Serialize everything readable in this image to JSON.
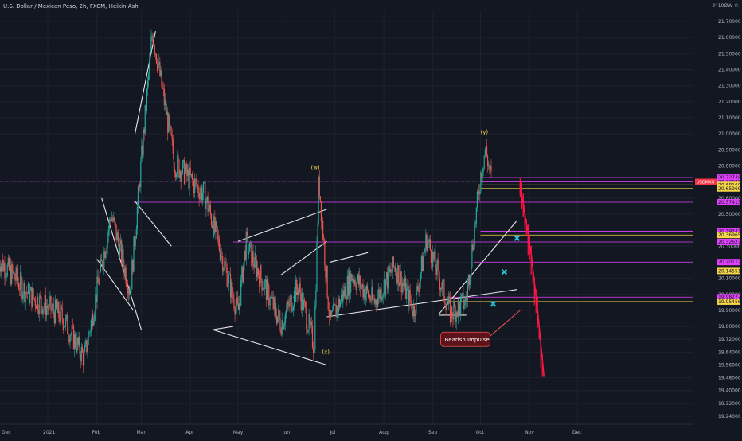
{
  "header": {
    "title": "U.S. Dollar / Mexican Peso, 2h, FXCM, Heikin Ashi",
    "corner": "2' 10ØW ©"
  },
  "chart_data": {
    "type": "candlestick",
    "symbol": "USDMXN",
    "timeframe": "2h",
    "source": "FXCM",
    "style": "Heikin Ashi",
    "x_ticks": [
      "Dec",
      "2021",
      "Feb",
      "Mar",
      "Apr",
      "May",
      "Jun",
      "Jul",
      "Aug",
      "Sep",
      "Oct",
      "Nov",
      "Dec"
    ],
    "y_ticks": [
      21.7,
      21.6,
      21.5,
      21.4,
      21.3,
      21.2,
      21.1,
      21.0,
      20.9,
      20.8,
      20.7,
      20.6,
      20.5,
      20.4,
      20.3,
      20.2,
      20.1,
      20.0,
      19.9,
      19.8,
      19.72,
      19.64,
      19.56,
      19.48,
      19.4,
      19.32,
      19.24
    ],
    "y_tick_labels": [
      "21.70000",
      "21.60000",
      "21.50000",
      "21.40000",
      "21.30000",
      "21.20000",
      "21.10000",
      "21.00000",
      "20.90000",
      "20.80000",
      "20.70000",
      "20.60000",
      "20.50000",
      "20.40000",
      "20.30000",
      "20.20000",
      "20.10000",
      "20.00000",
      "19.90000",
      "19.80000",
      "19.72000",
      "19.64000",
      "19.56000",
      "19.48000",
      "19.40000",
      "19.32000",
      "19.24000"
    ],
    "ylim": [
      19.2,
      21.82
    ],
    "price_path": [
      {
        "x": "2020-12-01",
        "y": 20.22
      },
      {
        "x": "2020-12-20",
        "y": 20.0
      },
      {
        "x": "2021-01-10",
        "y": 19.86
      },
      {
        "x": "2021-01-24",
        "y": 19.6
      },
      {
        "x": "2021-02-10",
        "y": 20.5
      },
      {
        "x": "2021-02-22",
        "y": 20.02
      },
      {
        "x": "2021-03-08",
        "y": 21.64
      },
      {
        "x": "2021-03-22",
        "y": 20.82
      },
      {
        "x": "2021-04-10",
        "y": 20.62
      },
      {
        "x": "2021-05-01",
        "y": 19.88
      },
      {
        "x": "2021-05-06",
        "y": 20.32
      },
      {
        "x": "2021-05-28",
        "y": 19.82
      },
      {
        "x": "2021-06-08",
        "y": 20.05
      },
      {
        "x": "2021-06-18",
        "y": 19.68
      },
      {
        "x": "2021-06-21",
        "y": 20.72
      },
      {
        "x": "2021-06-28",
        "y": 19.82
      },
      {
        "x": "2021-07-12",
        "y": 20.12
      },
      {
        "x": "2021-07-26",
        "y": 19.95
      },
      {
        "x": "2021-08-08",
        "y": 20.18
      },
      {
        "x": "2021-08-20",
        "y": 19.9
      },
      {
        "x": "2021-08-28",
        "y": 20.35
      },
      {
        "x": "2021-09-12",
        "y": 19.88
      },
      {
        "x": "2021-09-22",
        "y": 19.96
      },
      {
        "x": "2021-10-01",
        "y": 20.74
      },
      {
        "x": "2021-10-04",
        "y": 20.91
      },
      {
        "x": "2021-10-08",
        "y": 20.71
      }
    ],
    "projection": [
      {
        "x": "2021-10-26",
        "y": 20.68
      },
      {
        "x": "2021-10-29",
        "y": 20.5
      },
      {
        "x": "2021-11-02",
        "y": 20.25
      },
      {
        "x": "2021-11-06",
        "y": 19.9
      },
      {
        "x": "2021-11-10",
        "y": 19.49
      }
    ],
    "wave_labels": [
      {
        "text": "(w)",
        "x": "2021-06-19",
        "y": 20.78
      },
      {
        "text": "(x)",
        "x": "2021-06-26",
        "y": 19.63
      },
      {
        "text": "(y)",
        "x": "2021-10-04",
        "y": 21.0
      }
    ],
    "annotation": {
      "text": "Bearish Impulse",
      "x": "2021-10-07",
      "y": 19.72
    },
    "horizontal_levels": [
      {
        "value": 20.72748,
        "label": "20.72748",
        "color": "#e040fb"
      },
      {
        "value": 20.70078,
        "label": "20.70078",
        "color": "#e040fb"
      },
      {
        "value": 20.6816,
        "label": "20.68160",
        "color": "#f5d547"
      },
      {
        "value": 20.65969,
        "label": "20.65969",
        "color": "#f5d547"
      },
      {
        "value": 20.57413,
        "label": "20.57413",
        "color": "#e040fb"
      },
      {
        "value": 20.39343,
        "label": "20.39343",
        "color": "#e040fb"
      },
      {
        "value": 20.36965,
        "label": "20.36965",
        "color": "#f5d547"
      },
      {
        "value": 20.32627,
        "label": "20.32627",
        "color": "#e040fb"
      },
      {
        "value": 20.20112,
        "label": "20.20112",
        "color": "#e040fb"
      },
      {
        "value": 20.14551,
        "label": "20.14551",
        "color": "#f5d547"
      },
      {
        "value": 19.98277,
        "label": "19.98277",
        "color": "#e040fb"
      },
      {
        "value": 19.95456,
        "label": "19.95456",
        "color": "#f5d547"
      }
    ],
    "current_price_label": "USDMXN",
    "current_price": 20.70078,
    "targets": [
      {
        "x": "2021-10-24",
        "y": 20.35
      },
      {
        "x": "2021-10-16",
        "y": 20.14
      },
      {
        "x": "2021-10-09",
        "y": 19.94
      }
    ],
    "candle_up_color": "#26a69a",
    "candle_down_color": "#ef5350",
    "projection_color": "#ff1744",
    "grid": true,
    "legend": "none"
  }
}
